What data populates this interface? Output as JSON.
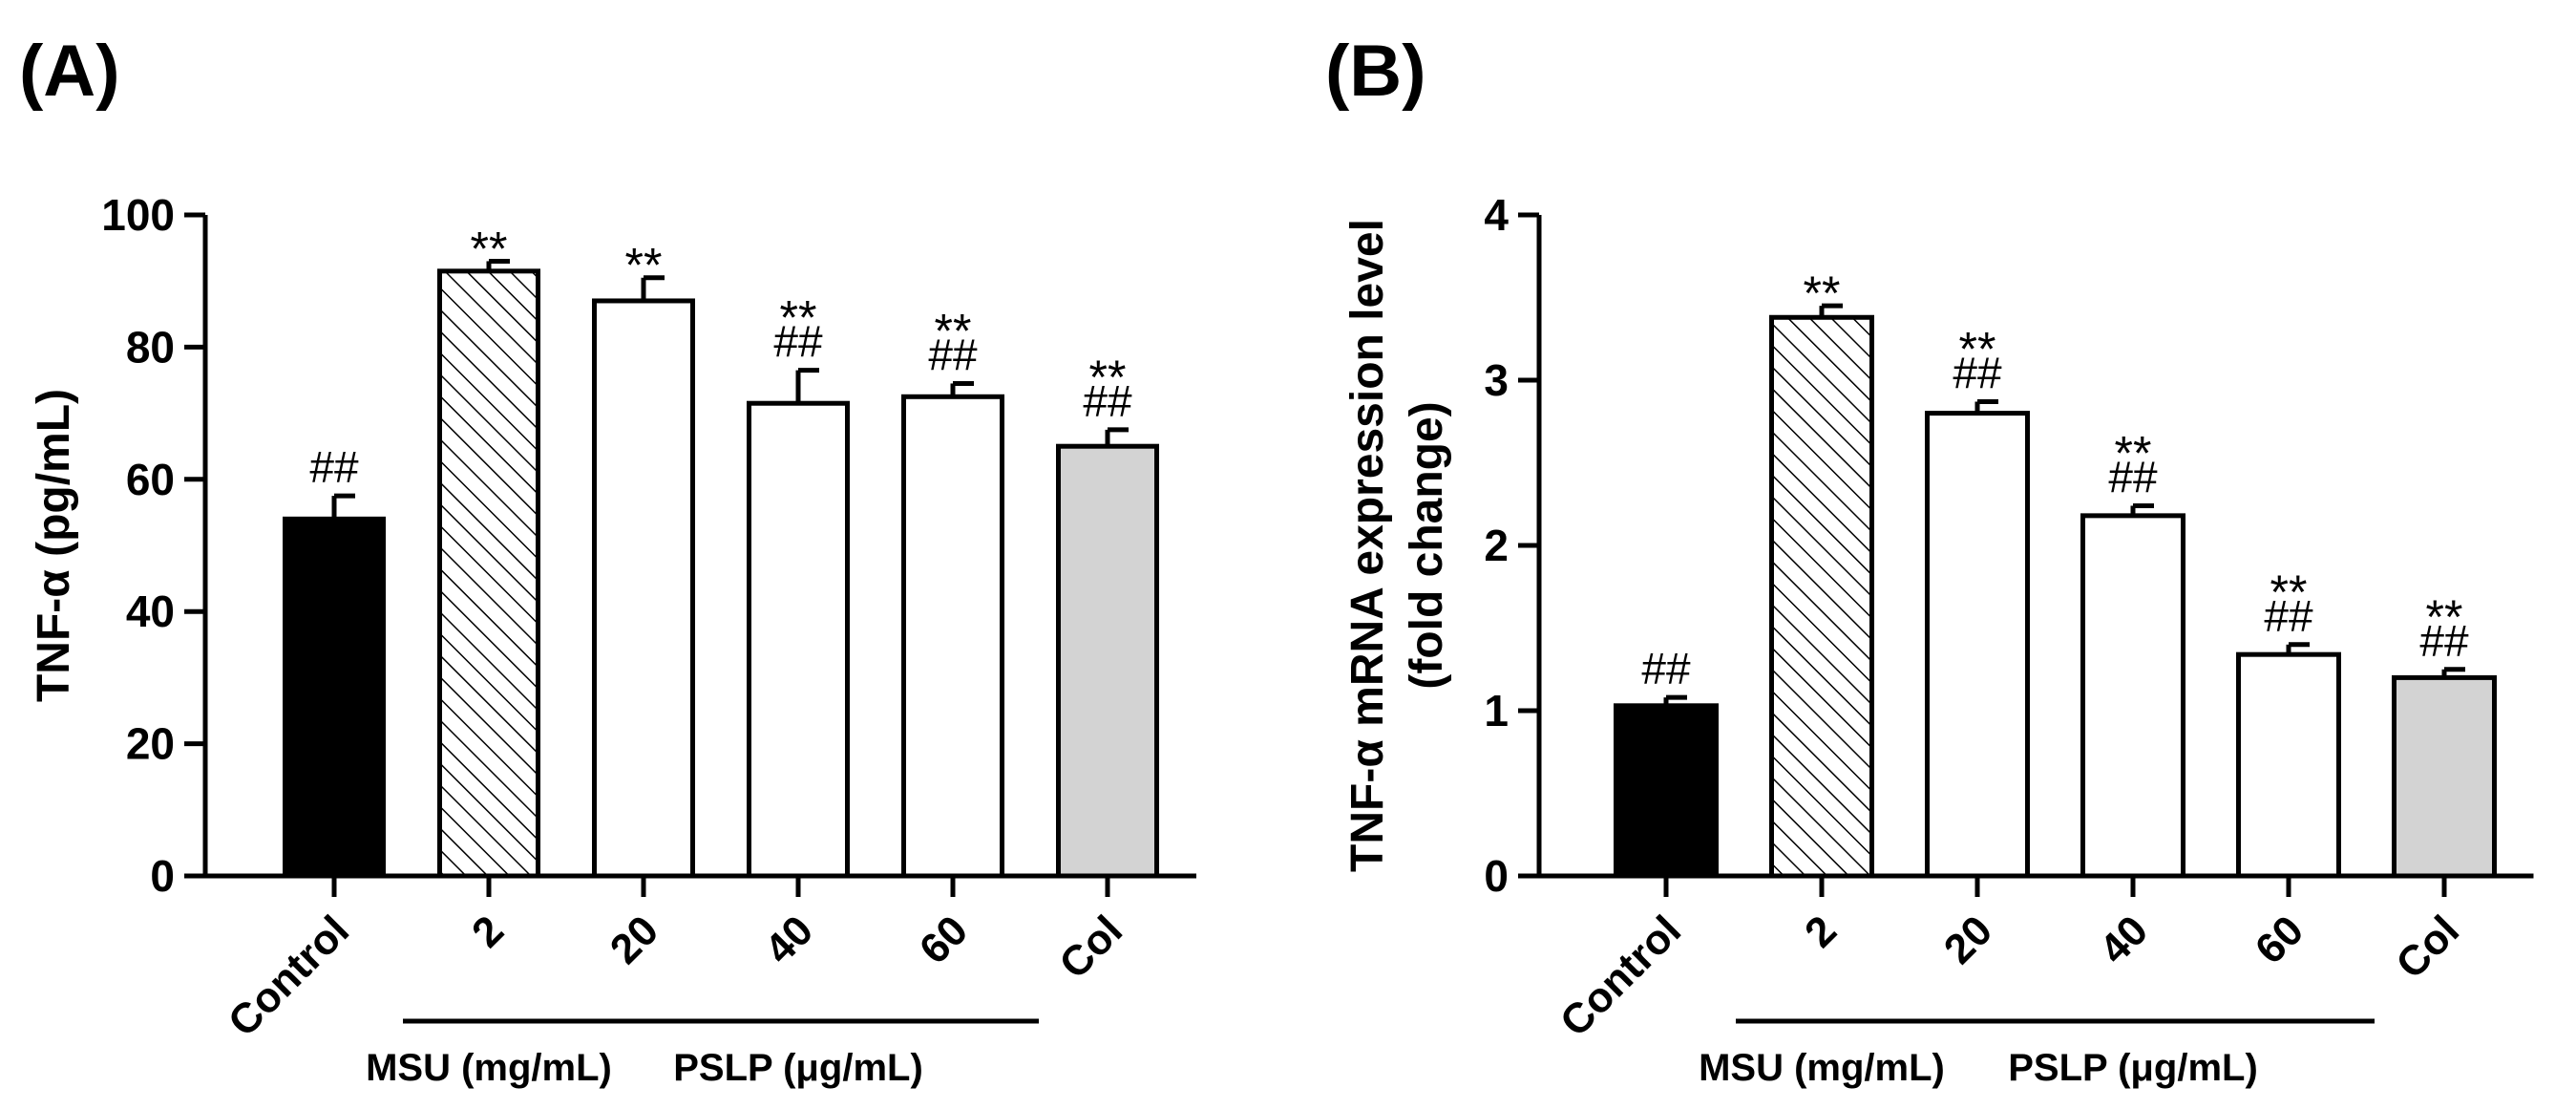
{
  "chart_data": [
    {
      "type": "bar",
      "panel": "(A)",
      "ylabel": "TNF-α (pg/mL)",
      "ylim": [
        0,
        100
      ],
      "yticks": [
        0,
        20,
        40,
        60,
        80,
        100
      ],
      "categories": [
        "Control",
        "2",
        "20",
        "40",
        "60",
        "Col"
      ],
      "values": [
        54,
        91.5,
        87,
        71.5,
        72.5,
        65
      ],
      "errors": [
        3.5,
        1.5,
        3.5,
        5,
        2,
        2.5
      ],
      "fills": [
        "solid-black",
        "hatched",
        "white",
        "white",
        "white",
        "gray"
      ],
      "annotations": [
        {
          "stars": "",
          "hash": "##"
        },
        {
          "stars": "**",
          "hash": ""
        },
        {
          "stars": "**",
          "hash": ""
        },
        {
          "stars": "**",
          "hash": "##"
        },
        {
          "stars": "**",
          "hash": "##"
        },
        {
          "stars": "**",
          "hash": "##"
        }
      ],
      "groups": [
        {
          "label": "MSU (mg/mL)",
          "from": 1,
          "to": 1
        },
        {
          "label": "PSLP (μg/mL)",
          "from": 2,
          "to": 4
        }
      ]
    },
    {
      "type": "bar",
      "panel": "(B)",
      "ylabel": [
        "TNF-α mRNA expression level",
        "(fold change)"
      ],
      "ylim": [
        0,
        4
      ],
      "yticks": [
        0,
        1,
        2,
        3,
        4
      ],
      "categories": [
        "Control",
        "2",
        "20",
        "40",
        "60",
        "Col"
      ],
      "values": [
        1.03,
        3.38,
        2.8,
        2.18,
        1.34,
        1.2
      ],
      "errors": [
        0.05,
        0.07,
        0.07,
        0.06,
        0.06,
        0.05
      ],
      "fills": [
        "solid-black",
        "hatched",
        "white",
        "white",
        "white",
        "gray"
      ],
      "annotations": [
        {
          "stars": "",
          "hash": "##"
        },
        {
          "stars": "**",
          "hash": ""
        },
        {
          "stars": "**",
          "hash": "##"
        },
        {
          "stars": "**",
          "hash": "##"
        },
        {
          "stars": "**",
          "hash": "##"
        },
        {
          "stars": "**",
          "hash": "##"
        }
      ],
      "groups": [
        {
          "label": "MSU (mg/mL)",
          "from": 1,
          "to": 1
        },
        {
          "label": "PSLP (μg/mL)",
          "from": 2,
          "to": 4
        }
      ]
    }
  ],
  "colors": {
    "black": "#000000",
    "white": "#ffffff",
    "gray": "#d3d3d3"
  }
}
